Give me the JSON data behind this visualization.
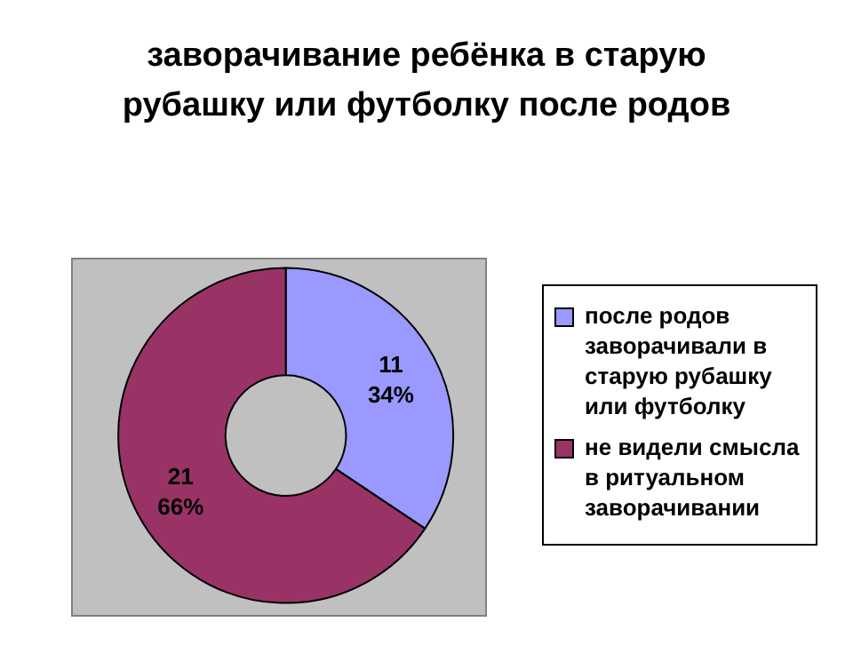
{
  "chart_data": {
    "type": "donut",
    "title": "заворачивание ребёнка в старую рубашку или футболку после родов",
    "categories": [
      "после родов заворачивали в старую рубашку или футболку",
      "не видели смысла в ритуальном заворачивании"
    ],
    "values": [
      11,
      21
    ],
    "value_labels": [
      "11\n34%",
      "21\n66%"
    ],
    "colors": [
      "#9999ff",
      "#993366"
    ],
    "legend": "right"
  }
}
